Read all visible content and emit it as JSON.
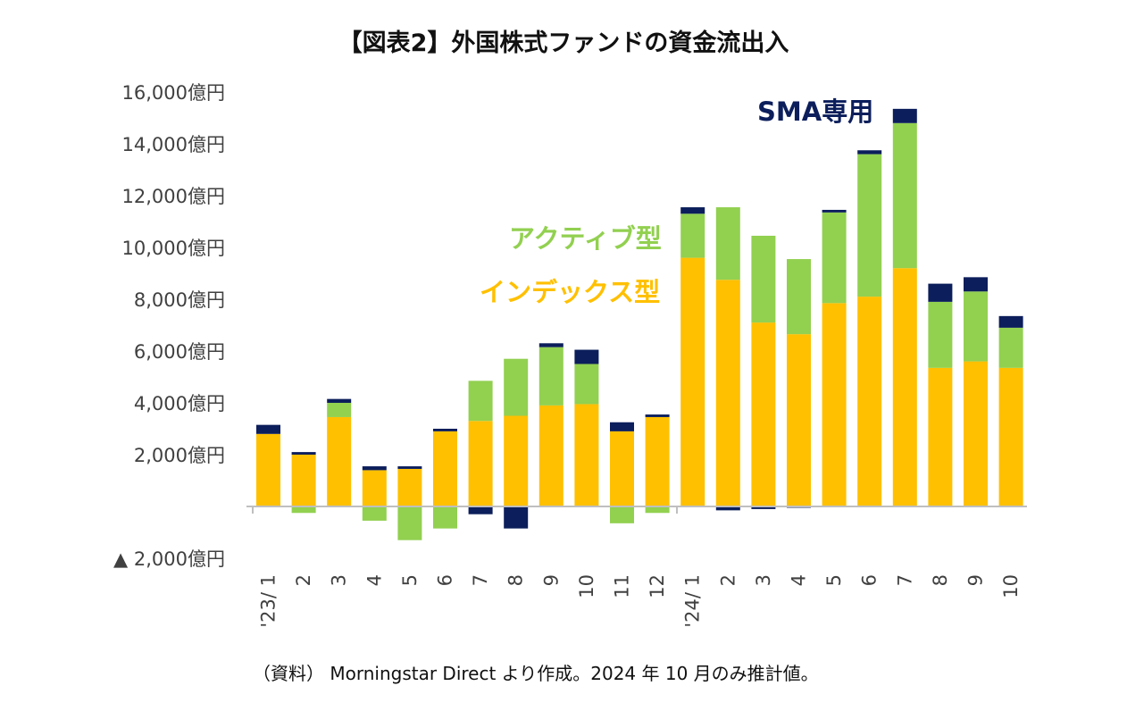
{
  "title": "【図表2】外国株式ファンドの資金流出入",
  "footer": "（資料） Morningstar Direct より作成。2024 年 10 月のみ推計値。",
  "colors": {
    "index": "#FFC000",
    "active": "#92D050",
    "sma": "#0C1E5B",
    "axis": "#BFBFBF",
    "text": "#404040"
  },
  "chart_data": {
    "type": "bar",
    "stacked": true,
    "unit": "億円",
    "ylim": [
      -2000,
      16000
    ],
    "y_ticks": [
      {
        "value": 16000,
        "label": "16,000億円"
      },
      {
        "value": 14000,
        "label": "14,000億円"
      },
      {
        "value": 12000,
        "label": "12,000億円"
      },
      {
        "value": 10000,
        "label": "10,000億円"
      },
      {
        "value": 8000,
        "label": "8,000億円"
      },
      {
        "value": 6000,
        "label": "6,000億円"
      },
      {
        "value": 4000,
        "label": "4,000億円"
      },
      {
        "value": 2000,
        "label": "2,000億円"
      },
      {
        "value": -2000,
        "label": "▲ 2,000億円"
      }
    ],
    "categories": [
      "'23/ 1",
      "2",
      "3",
      "4",
      "5",
      "6",
      "7",
      "8",
      "9",
      "10",
      "11",
      "12",
      "'24/ 1",
      "2",
      "3",
      "4",
      "5",
      "6",
      "7",
      "8",
      "9",
      "10"
    ],
    "series": [
      {
        "name": "インデックス型",
        "key": "index",
        "values": [
          2800,
          2000,
          3450,
          1400,
          1450,
          2900,
          3300,
          3500,
          3900,
          3950,
          2900,
          3450,
          9600,
          8750,
          7100,
          6650,
          7850,
          8100,
          9200,
          5350,
          5600,
          5350
        ]
      },
      {
        "name": "アクティブ型",
        "key": "active",
        "values": [
          0,
          -250,
          550,
          -550,
          -1300,
          -850,
          1550,
          2200,
          2250,
          1550,
          -650,
          -250,
          1700,
          2800,
          3350,
          2900,
          3500,
          5500,
          5600,
          2550,
          2700,
          1550
        ]
      },
      {
        "name": "SMA専用",
        "key": "sma",
        "values": [
          350,
          100,
          150,
          150,
          100,
          100,
          -300,
          -850,
          150,
          550,
          350,
          100,
          250,
          -150,
          -100,
          -50,
          100,
          150,
          550,
          700,
          550,
          450
        ]
      }
    ],
    "legend": [
      {
        "label": "SMA専用",
        "key": "sma"
      },
      {
        "label": "アクティブ型",
        "key": "active"
      },
      {
        "label": "インデックス型",
        "key": "index"
      }
    ]
  }
}
